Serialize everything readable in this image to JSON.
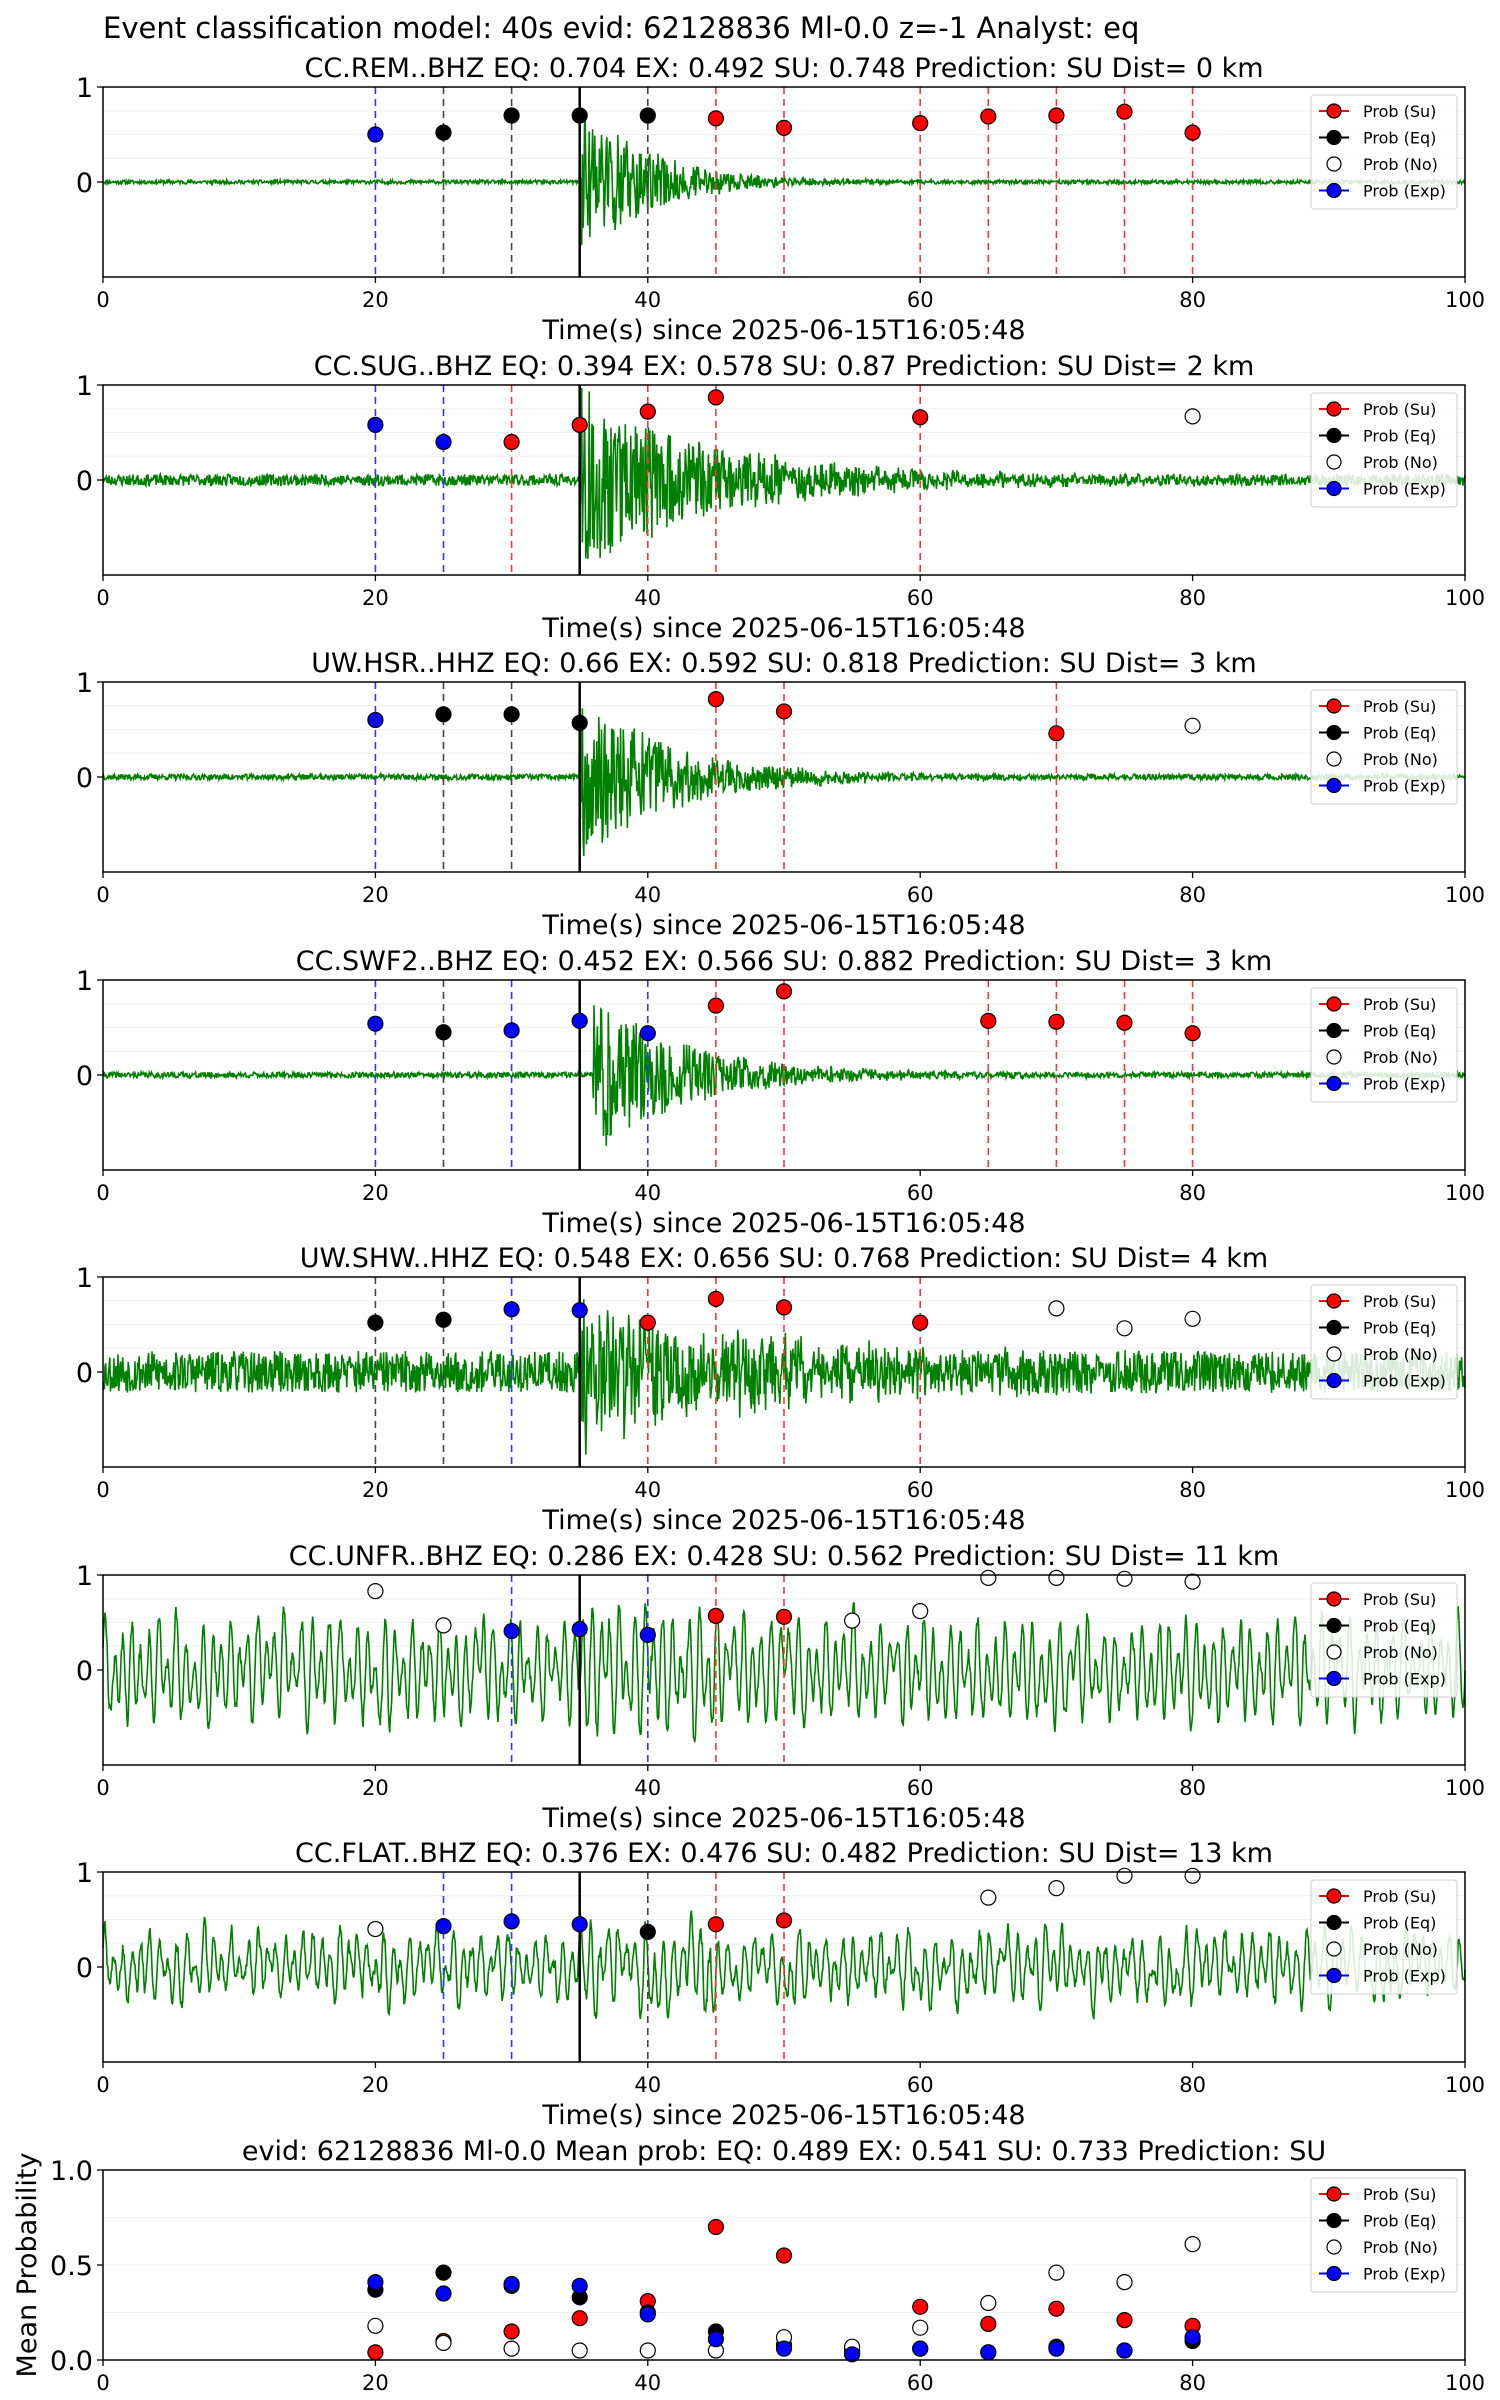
{
  "suptitle": "Event classification model: 40s evid: 62128836 Ml-0.0 z=-1 Analyst: eq",
  "colors": {
    "su": "#ff0000",
    "eq": "#000000",
    "no": "#ffffff",
    "exp": "#0000ff",
    "waveform": "#008000"
  },
  "chart_data": [
    {
      "type": "scatter",
      "title": "CC.REM..BHZ   EQ: 0.704  EX: 0.492  SU: 0.748   Prediction: SU    Dist= 0 km",
      "xlabel": "Time(s) since 2025-06-15T16:05:48",
      "ylabel": "",
      "xlim": [
        0,
        100
      ],
      "ylim": [
        -1,
        1
      ],
      "xticks": [
        "0",
        "20",
        "40",
        "60",
        "80",
        "100"
      ],
      "yticks": [
        "1",
        "0"
      ],
      "arrival": 35,
      "seed": 11,
      "onset": 35,
      "noise": 0.02,
      "amp": 0.9,
      "decay": 5,
      "wave": "quake",
      "legend": [
        "Prob (Su)",
        "Prob (Eq)",
        "Prob (No)",
        "Prob (Exp)"
      ],
      "points": [
        {
          "x": 20,
          "y": 0.5,
          "cls": "exp"
        },
        {
          "x": 25,
          "y": 0.52,
          "cls": "eq"
        },
        {
          "x": 30,
          "y": 0.7,
          "cls": "eq"
        },
        {
          "x": 35,
          "y": 0.7,
          "cls": "eq"
        },
        {
          "x": 40,
          "y": 0.7,
          "cls": "eq"
        },
        {
          "x": 45,
          "y": 0.67,
          "cls": "su"
        },
        {
          "x": 50,
          "y": 0.57,
          "cls": "su"
        },
        {
          "x": 60,
          "y": 0.62,
          "cls": "su"
        },
        {
          "x": 65,
          "y": 0.69,
          "cls": "su"
        },
        {
          "x": 70,
          "y": 0.7,
          "cls": "su"
        },
        {
          "x": 75,
          "y": 0.74,
          "cls": "su"
        },
        {
          "x": 80,
          "y": 0.52,
          "cls": "su"
        }
      ]
    },
    {
      "type": "scatter",
      "title": "CC.SUG..BHZ   EQ: 0.394  EX: 0.578  SU: 0.87   Prediction: SU    Dist= 2 km",
      "xlabel": "Time(s) since 2025-06-15T16:05:48",
      "ylabel": "",
      "xlim": [
        0,
        100
      ],
      "ylim": [
        -1,
        1
      ],
      "xticks": [
        "0",
        "20",
        "40",
        "60",
        "80",
        "100"
      ],
      "yticks": [
        "1",
        "0"
      ],
      "arrival": 35,
      "seed": 23,
      "onset": 35,
      "noise": 0.06,
      "amp": 0.95,
      "decay": 10,
      "wave": "quake",
      "legend": [
        "Prob (Su)",
        "Prob (Eq)",
        "Prob (No)",
        "Prob (Exp)"
      ],
      "points": [
        {
          "x": 20,
          "y": 0.58,
          "cls": "exp"
        },
        {
          "x": 25,
          "y": 0.4,
          "cls": "exp"
        },
        {
          "x": 30,
          "y": 0.4,
          "cls": "su"
        },
        {
          "x": 35,
          "y": 0.58,
          "cls": "su"
        },
        {
          "x": 40,
          "y": 0.72,
          "cls": "su"
        },
        {
          "x": 45,
          "y": 0.87,
          "cls": "su"
        },
        {
          "x": 60,
          "y": 0.66,
          "cls": "su"
        },
        {
          "x": 80,
          "y": 0.67,
          "cls": "no"
        }
      ]
    },
    {
      "type": "scatter",
      "title": "UW.HSR..HHZ   EQ: 0.66  EX: 0.592  SU: 0.818   Prediction: SU    Dist= 3 km",
      "xlabel": "Time(s) since 2025-06-15T16:05:48",
      "ylabel": "",
      "xlim": [
        0,
        100
      ],
      "ylim": [
        -1,
        1
      ],
      "xticks": [
        "0",
        "20",
        "40",
        "60",
        "80",
        "100"
      ],
      "yticks": [
        "1",
        "0"
      ],
      "arrival": 35,
      "seed": 37,
      "onset": 35,
      "noise": 0.03,
      "amp": 0.9,
      "decay": 7,
      "wave": "quake",
      "legend": [
        "Prob (Su)",
        "Prob (Eq)",
        "Prob (No)",
        "Prob (Exp)"
      ],
      "points": [
        {
          "x": 20,
          "y": 0.6,
          "cls": "exp"
        },
        {
          "x": 25,
          "y": 0.66,
          "cls": "eq"
        },
        {
          "x": 30,
          "y": 0.66,
          "cls": "eq"
        },
        {
          "x": 35,
          "y": 0.57,
          "cls": "eq"
        },
        {
          "x": 45,
          "y": 0.82,
          "cls": "su"
        },
        {
          "x": 50,
          "y": 0.69,
          "cls": "su"
        },
        {
          "x": 70,
          "y": 0.46,
          "cls": "su"
        },
        {
          "x": 80,
          "y": 0.54,
          "cls": "no"
        }
      ]
    },
    {
      "type": "scatter",
      "title": "CC.SWF2..BHZ   EQ: 0.452  EX: 0.566  SU: 0.882   Prediction: SU    Dist= 3 km",
      "xlabel": "Time(s) since 2025-06-15T16:05:48",
      "ylabel": "",
      "xlim": [
        0,
        100
      ],
      "ylim": [
        -1,
        1
      ],
      "xticks": [
        "0",
        "20",
        "40",
        "60",
        "80",
        "100"
      ],
      "yticks": [
        "1",
        "0"
      ],
      "arrival": 35,
      "seed": 41,
      "onset": 36,
      "noise": 0.03,
      "amp": 0.85,
      "decay": 7,
      "wave": "quake",
      "legend": [
        "Prob (Su)",
        "Prob (Eq)",
        "Prob (No)",
        "Prob (Exp)"
      ],
      "points": [
        {
          "x": 20,
          "y": 0.54,
          "cls": "exp"
        },
        {
          "x": 25,
          "y": 0.45,
          "cls": "eq"
        },
        {
          "x": 30,
          "y": 0.47,
          "cls": "exp"
        },
        {
          "x": 35,
          "y": 0.57,
          "cls": "exp"
        },
        {
          "x": 40,
          "y": 0.44,
          "cls": "exp"
        },
        {
          "x": 45,
          "y": 0.73,
          "cls": "su"
        },
        {
          "x": 50,
          "y": 0.88,
          "cls": "su"
        },
        {
          "x": 65,
          "y": 0.57,
          "cls": "su"
        },
        {
          "x": 70,
          "y": 0.56,
          "cls": "su"
        },
        {
          "x": 75,
          "y": 0.55,
          "cls": "su"
        },
        {
          "x": 80,
          "y": 0.44,
          "cls": "su"
        }
      ]
    },
    {
      "type": "scatter",
      "title": "UW.SHW..HHZ   EQ: 0.548  EX: 0.656  SU: 0.768   Prediction: SU    Dist= 4 km",
      "xlabel": "Time(s) since 2025-06-15T16:05:48",
      "ylabel": "",
      "xlim": [
        0,
        100
      ],
      "ylim": [
        -1,
        1
      ],
      "xticks": [
        "0",
        "20",
        "40",
        "60",
        "80",
        "100"
      ],
      "yticks": [
        "1",
        "0"
      ],
      "arrival": 35,
      "seed": 53,
      "onset": 35,
      "noise": 0.22,
      "amp": 0.8,
      "decay": 12,
      "wave": "quake",
      "legend": [
        "Prob (Su)",
        "Prob (Eq)",
        "Prob (No)",
        "Prob (Exp)"
      ],
      "points": [
        {
          "x": 20,
          "y": 0.52,
          "cls": "eq"
        },
        {
          "x": 25,
          "y": 0.55,
          "cls": "eq"
        },
        {
          "x": 30,
          "y": 0.66,
          "cls": "exp"
        },
        {
          "x": 35,
          "y": 0.65,
          "cls": "exp"
        },
        {
          "x": 40,
          "y": 0.52,
          "cls": "su"
        },
        {
          "x": 45,
          "y": 0.77,
          "cls": "su"
        },
        {
          "x": 50,
          "y": 0.68,
          "cls": "su"
        },
        {
          "x": 60,
          "y": 0.52,
          "cls": "su"
        },
        {
          "x": 70,
          "y": 0.67,
          "cls": "no"
        },
        {
          "x": 75,
          "y": 0.46,
          "cls": "no"
        },
        {
          "x": 80,
          "y": 0.56,
          "cls": "no"
        }
      ]
    },
    {
      "type": "scatter",
      "title": "CC.UNFR..BHZ   EQ: 0.286  EX: 0.428  SU: 0.562   Prediction: SU    Dist= 11 km",
      "xlabel": "Time(s) since 2025-06-15T16:05:48",
      "ylabel": "",
      "xlim": [
        0,
        100
      ],
      "ylim": [
        -1,
        1
      ],
      "xticks": [
        "0",
        "20",
        "40",
        "60",
        "80",
        "100"
      ],
      "yticks": [
        "1",
        "0"
      ],
      "arrival": 35,
      "seed": 67,
      "onset": 35,
      "noise": 0.55,
      "amp": 0.3,
      "decay": 15,
      "wave": "noisy",
      "legend": [
        "Prob (Su)",
        "Prob (Eq)",
        "Prob (No)",
        "Prob (Exp)"
      ],
      "points": [
        {
          "x": 20,
          "y": 0.83,
          "cls": "no"
        },
        {
          "x": 25,
          "y": 0.47,
          "cls": "no"
        },
        {
          "x": 30,
          "y": 0.41,
          "cls": "exp"
        },
        {
          "x": 35,
          "y": 0.43,
          "cls": "exp"
        },
        {
          "x": 40,
          "y": 0.37,
          "cls": "exp"
        },
        {
          "x": 45,
          "y": 0.57,
          "cls": "su"
        },
        {
          "x": 50,
          "y": 0.56,
          "cls": "su"
        },
        {
          "x": 55,
          "y": 0.52,
          "cls": "no"
        },
        {
          "x": 60,
          "y": 0.62,
          "cls": "no"
        },
        {
          "x": 65,
          "y": 0.97,
          "cls": "no"
        },
        {
          "x": 70,
          "y": 0.97,
          "cls": "no"
        },
        {
          "x": 75,
          "y": 0.96,
          "cls": "no"
        },
        {
          "x": 80,
          "y": 0.93,
          "cls": "no"
        }
      ]
    },
    {
      "type": "scatter",
      "title": "CC.FLAT..BHZ   EQ: 0.376  EX: 0.476  SU: 0.482   Prediction: SU    Dist= 13 km",
      "xlabel": "Time(s) since 2025-06-15T16:05:48",
      "ylabel": "",
      "xlim": [
        0,
        100
      ],
      "ylim": [
        -1,
        1
      ],
      "xticks": [
        "0",
        "20",
        "40",
        "60",
        "80",
        "100"
      ],
      "yticks": [
        "1",
        "0"
      ],
      "arrival": 35,
      "seed": 79,
      "onset": 35,
      "noise": 0.35,
      "amp": 0.3,
      "decay": 15,
      "wave": "noisy",
      "legend": [
        "Prob (Su)",
        "Prob (Eq)",
        "Prob (No)",
        "Prob (Exp)"
      ],
      "points": [
        {
          "x": 20,
          "y": 0.4,
          "cls": "no"
        },
        {
          "x": 25,
          "y": 0.43,
          "cls": "exp"
        },
        {
          "x": 30,
          "y": 0.48,
          "cls": "exp"
        },
        {
          "x": 35,
          "y": 0.45,
          "cls": "exp"
        },
        {
          "x": 40,
          "y": 0.37,
          "cls": "eq"
        },
        {
          "x": 45,
          "y": 0.45,
          "cls": "su"
        },
        {
          "x": 50,
          "y": 0.49,
          "cls": "su"
        },
        {
          "x": 65,
          "y": 0.73,
          "cls": "no"
        },
        {
          "x": 70,
          "y": 0.83,
          "cls": "no"
        },
        {
          "x": 75,
          "y": 0.96,
          "cls": "no"
        },
        {
          "x": 80,
          "y": 0.96,
          "cls": "no"
        }
      ]
    },
    {
      "type": "scatter",
      "title": "evid: 62128836  Ml-0.0   Mean prob:   EQ: 0.489  EX: 0.541  SU: 0.733   Prediction: SU",
      "xlabel": "",
      "ylabel": "Mean Probability",
      "xlim": [
        0,
        100
      ],
      "ylim": [
        0,
        1
      ],
      "xticks": [
        "0",
        "20",
        "40",
        "60",
        "80",
        "100"
      ],
      "yticks": [
        "0.0",
        "0.5",
        "1.0"
      ],
      "legend": [
        "Prob (Su)",
        "Prob (Eq)",
        "Prob (No)",
        "Prob (Exp)"
      ],
      "series": [
        {
          "cls": "su",
          "x": [
            20,
            25,
            30,
            35,
            40,
            45,
            50,
            55,
            60,
            65,
            70,
            75,
            80
          ],
          "y": [
            0.04,
            0.1,
            0.15,
            0.22,
            0.31,
            0.7,
            0.55,
            0.04,
            0.28,
            0.19,
            0.27,
            0.21,
            0.18
          ]
        },
        {
          "cls": "eq",
          "x": [
            20,
            25,
            30,
            35,
            40,
            45,
            50,
            55,
            60,
            65,
            70,
            75,
            80
          ],
          "y": [
            0.37,
            0.46,
            0.39,
            0.33,
            0.25,
            0.15,
            0.08,
            0.05,
            0.06,
            0.04,
            0.07,
            0.05,
            0.1
          ]
        },
        {
          "cls": "no",
          "x": [
            20,
            25,
            30,
            35,
            40,
            45,
            50,
            55,
            60,
            65,
            70,
            75,
            80
          ],
          "y": [
            0.18,
            0.09,
            0.06,
            0.05,
            0.05,
            0.05,
            0.12,
            0.07,
            0.17,
            0.3,
            0.46,
            0.41,
            0.61
          ]
        },
        {
          "cls": "exp",
          "x": [
            20,
            25,
            30,
            35,
            40,
            45,
            50,
            55,
            60,
            65,
            70,
            75,
            80
          ],
          "y": [
            0.41,
            0.35,
            0.4,
            0.39,
            0.24,
            0.11,
            0.06,
            0.03,
            0.06,
            0.04,
            0.06,
            0.05,
            0.12
          ]
        }
      ]
    }
  ]
}
